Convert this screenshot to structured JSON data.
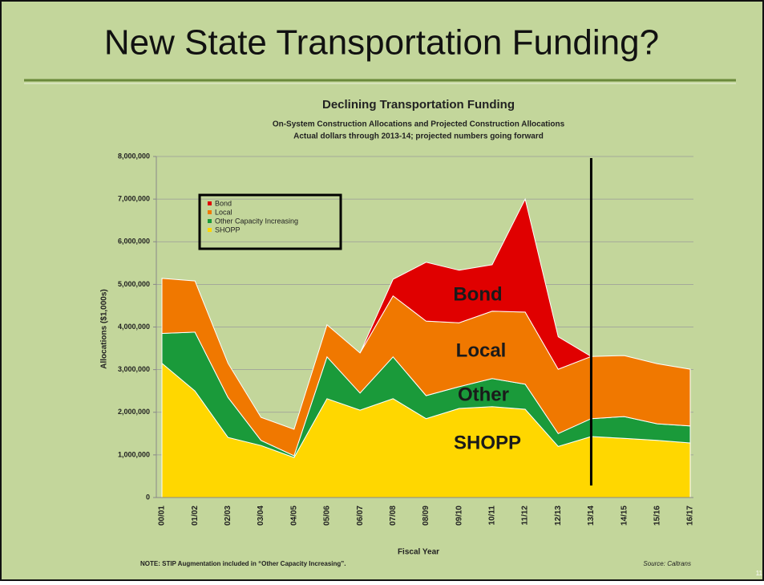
{
  "slide_title": "New State Transportation Funding?",
  "chart_data": {
    "type": "stacked_area",
    "title": "Declining Transportation Funding",
    "subtitle": [
      "On-System Construction Allocations and Projected Construction Allocations",
      "Actual dollars through 2013-14; projected numbers going forward"
    ],
    "x_label": "Fiscal Year",
    "y_label": "Allocations ($1,000s)",
    "categories": [
      "00/01",
      "01/02",
      "02/03",
      "03/04",
      "04/05",
      "05/06",
      "06/07",
      "07/08",
      "08/09",
      "09/10",
      "10/11",
      "11/12",
      "12/13",
      "13/14",
      "14/15",
      "15/16",
      "16/17"
    ],
    "series": [
      {
        "name": "Bond",
        "color": "#e00000",
        "values": [
          null,
          null,
          null,
          null,
          null,
          null,
          0,
          390000,
          1380000,
          1230000,
          1090000,
          2650000,
          760000,
          0,
          null,
          null,
          null
        ]
      },
      {
        "name": "Local",
        "color": "#f07800",
        "values": [
          1290000,
          1200000,
          800000,
          540000,
          620000,
          750000,
          940000,
          1430000,
          1750000,
          1500000,
          1580000,
          1690000,
          1510000,
          1460000,
          1430000,
          1410000,
          1330000
        ]
      },
      {
        "name": "Other Capacity Increasing",
        "color": "#1a9a3a",
        "values": [
          700000,
          1380000,
          940000,
          120000,
          40000,
          980000,
          400000,
          980000,
          540000,
          510000,
          660000,
          590000,
          300000,
          420000,
          510000,
          390000,
          400000
        ]
      },
      {
        "name": "SHOPP",
        "color": "#ffd700",
        "values": [
          3150000,
          2500000,
          1410000,
          1220000,
          940000,
          2320000,
          2050000,
          2320000,
          1850000,
          2090000,
          2130000,
          2070000,
          1200000,
          1430000,
          1390000,
          1340000,
          1280000
        ]
      }
    ],
    "annotations": [
      "Bond",
      "Local",
      "Other",
      "SHOPP"
    ],
    "ylim": [
      0,
      8000000
    ],
    "yticks": [
      0,
      {
        "value": 1000000,
        "label": "1,000,000"
      },
      {
        "value": 2000000,
        "label": "2,000,000"
      },
      {
        "value": 3000000,
        "label": "3,000,000"
      },
      {
        "value": 4000000,
        "label": "4,000,000"
      },
      {
        "value": 5000000,
        "label": "5,000,000"
      },
      {
        "value": 6000000,
        "label": "6,000,000"
      },
      {
        "value": 7000000,
        "label": "7,000,000"
      },
      {
        "value": 8000000,
        "label": "8,000,000"
      }
    ],
    "grid": true,
    "legend": "upper left",
    "note": "NOTE: STIP Augmentation included in “Other Capacity Increasing”.",
    "source": "Source: Caltrans"
  },
  "page_number": "11"
}
